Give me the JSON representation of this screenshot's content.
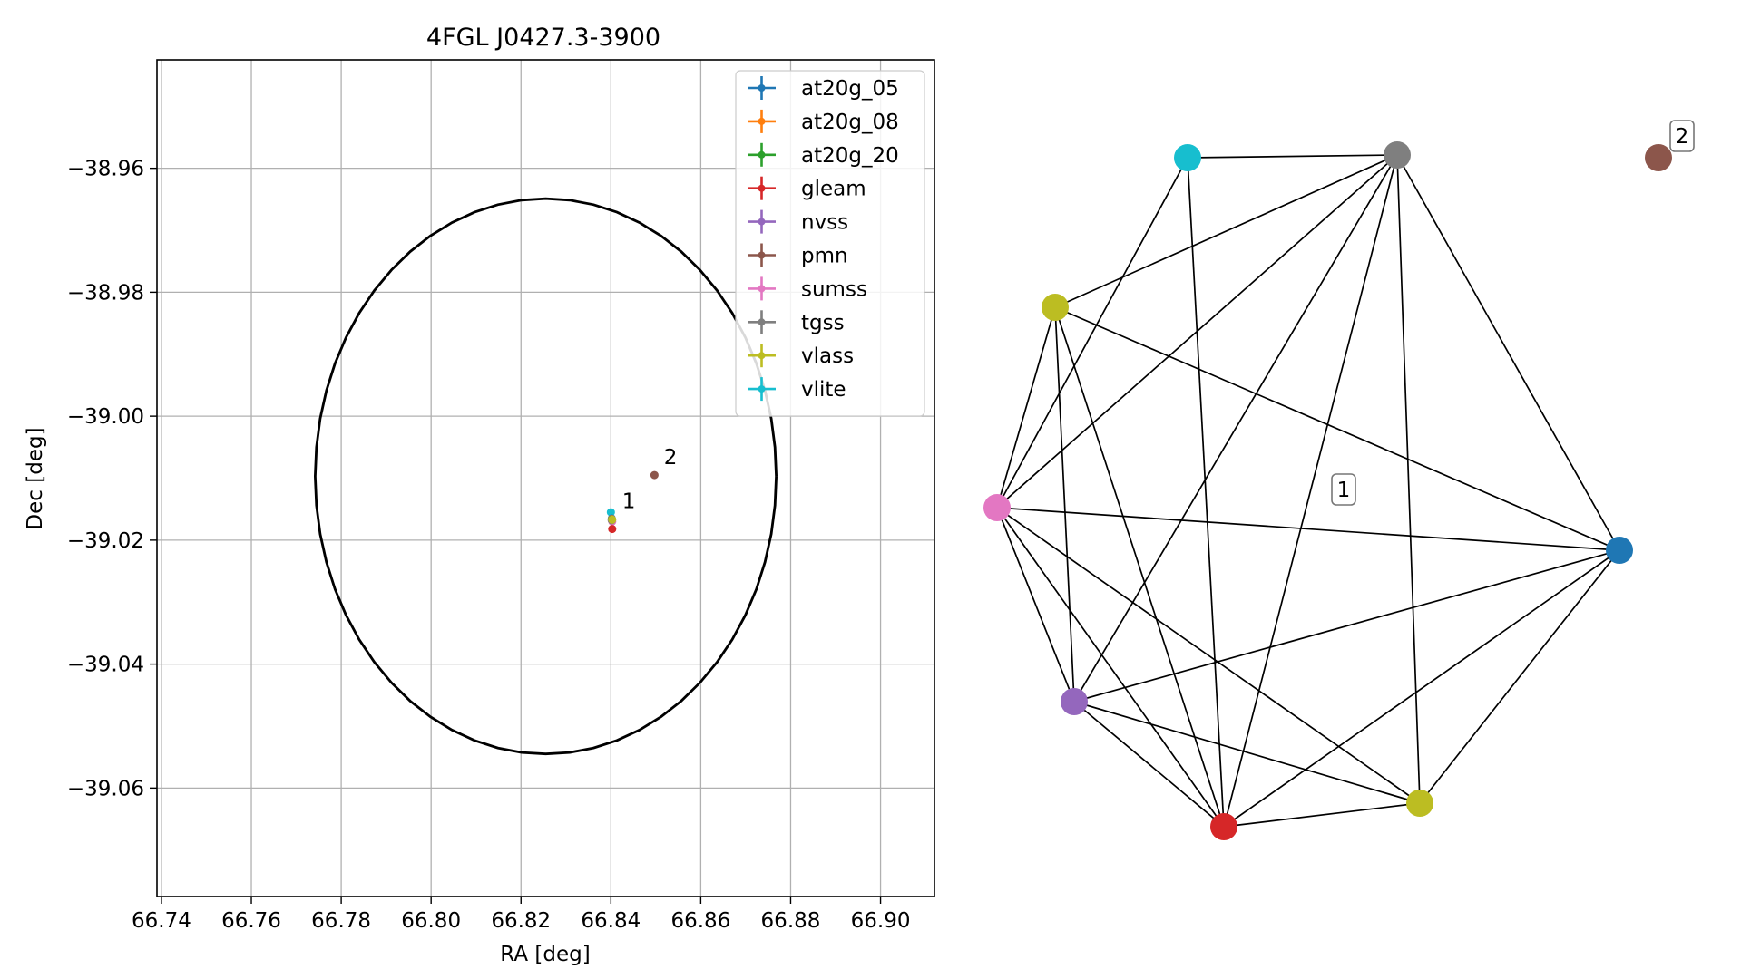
{
  "chart_data": [
    {
      "type": "scatter",
      "title": "4FGL J0427.3-3900",
      "xlabel": "RA [deg]",
      "ylabel": "Dec [deg]",
      "xlim": [
        66.739,
        66.912
      ],
      "ylim": [
        -39.0775,
        -38.9425
      ],
      "xticks": [
        66.74,
        66.76,
        66.78,
        66.8,
        66.82,
        66.84,
        66.86,
        66.88,
        66.9
      ],
      "xtick_labels": [
        "66.74",
        "66.76",
        "66.78",
        "66.80",
        "66.82",
        "66.84",
        "66.86",
        "66.88",
        "66.90"
      ],
      "yticks": [
        -38.96,
        -38.98,
        -39.0,
        -39.02,
        -39.04,
        -39.06
      ],
      "ytick_labels": [
        "−38.96",
        "−38.98",
        "−39.00",
        "−39.02",
        "−39.04",
        "−39.06"
      ],
      "grid": true,
      "legend_position": "top-right",
      "ellipse": {
        "center": [
          66.8255,
          -39.0097
        ],
        "semi_axis_ra": 0.0513,
        "semi_axis_dec": 0.0448,
        "color": "#000000"
      },
      "series": [
        {
          "name": "at20g_05",
          "color": "#1f77b4",
          "points": [
            {
              "x": 66.8402,
              "y": -39.0165
            }
          ]
        },
        {
          "name": "at20g_08",
          "color": "#ff7f0e",
          "points": [
            {
              "x": 66.8402,
              "y": -39.0166
            }
          ]
        },
        {
          "name": "at20g_20",
          "color": "#2ca02c",
          "points": [
            {
              "x": 66.8402,
              "y": -39.0167
            }
          ]
        },
        {
          "name": "gleam",
          "color": "#d62728",
          "points": [
            {
              "x": 66.8403,
              "y": -39.0182
            }
          ]
        },
        {
          "name": "nvss",
          "color": "#9467bd",
          "points": [
            {
              "x": 66.8402,
              "y": -39.0168
            }
          ]
        },
        {
          "name": "pmn",
          "color": "#8c564b",
          "points": [
            {
              "x": 66.8497,
              "y": -39.0095
            }
          ]
        },
        {
          "name": "sumss",
          "color": "#e377c2",
          "points": [
            {
              "x": 66.8403,
              "y": -39.017
            }
          ]
        },
        {
          "name": "tgss",
          "color": "#7f7f7f",
          "points": [
            {
              "x": 66.8402,
              "y": -39.0168
            }
          ]
        },
        {
          "name": "vlass",
          "color": "#bcbd22",
          "points": [
            {
              "x": 66.8403,
              "y": -39.0167
            }
          ]
        },
        {
          "name": "vlite",
          "color": "#17becf",
          "points": [
            {
              "x": 66.84,
              "y": -39.0155
            }
          ]
        }
      ],
      "annotations": [
        {
          "text": "1",
          "x": 66.8425,
          "y": -39.0148
        },
        {
          "text": "2",
          "x": 66.8518,
          "y": -39.0077
        }
      ]
    },
    {
      "type": "network",
      "nodes": [
        {
          "id": "vlite",
          "color": "#17becf"
        },
        {
          "id": "tgss",
          "color": "#7f7f7f"
        },
        {
          "id": "pmn",
          "color": "#8c564b"
        },
        {
          "id": "vlass_a",
          "color": "#bcbd22"
        },
        {
          "id": "sumss",
          "color": "#e377c2"
        },
        {
          "id": "at20g",
          "color": "#1f77b4"
        },
        {
          "id": "nvss",
          "color": "#9467bd"
        },
        {
          "id": "vlass_b",
          "color": "#bcbd22"
        },
        {
          "id": "gleam",
          "color": "#d62728"
        }
      ],
      "edges": [
        [
          "vlite",
          "tgss"
        ],
        [
          "vlite",
          "sumss"
        ],
        [
          "vlite",
          "gleam"
        ],
        [
          "tgss",
          "vlass_a"
        ],
        [
          "tgss",
          "sumss"
        ],
        [
          "tgss",
          "at20g"
        ],
        [
          "tgss",
          "nvss"
        ],
        [
          "tgss",
          "vlass_b"
        ],
        [
          "tgss",
          "gleam"
        ],
        [
          "vlass_a",
          "sumss"
        ],
        [
          "vlass_a",
          "at20g"
        ],
        [
          "vlass_a",
          "nvss"
        ],
        [
          "vlass_a",
          "gleam"
        ],
        [
          "sumss",
          "at20g"
        ],
        [
          "sumss",
          "nvss"
        ],
        [
          "sumss",
          "gleam"
        ],
        [
          "sumss",
          "vlass_b"
        ],
        [
          "at20g",
          "nvss"
        ],
        [
          "at20g",
          "gleam"
        ],
        [
          "at20g",
          "vlass_b"
        ],
        [
          "nvss",
          "gleam"
        ],
        [
          "nvss",
          "vlass_b"
        ],
        [
          "gleam",
          "vlass_b"
        ]
      ],
      "labels": [
        {
          "text": "1",
          "cluster": "main"
        },
        {
          "text": "2",
          "cluster": "pmn"
        }
      ]
    }
  ]
}
